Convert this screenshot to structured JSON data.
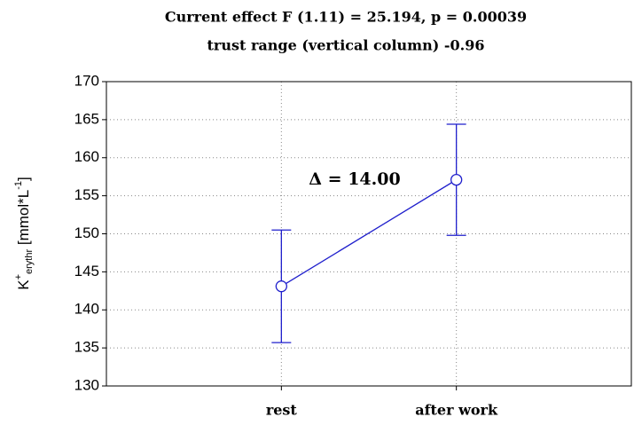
{
  "chart_data": {
    "type": "line",
    "title": "Current effect F (1.11) = 25.194, p = 0.00039",
    "subtitle": "trust range (vertical column) -0.96",
    "y_label": [
      "K",
      "+",
      "erythr",
      " [mmol*L",
      "-1",
      "]"
    ],
    "annotation": "Δ = 14.00",
    "categories": [
      "rest",
      "after work"
    ],
    "series": [
      {
        "color": "#1f1fcc",
        "values": [
          143.1,
          157.1
        ],
        "errors": [
          7.4,
          7.3
        ]
      }
    ],
    "ylim": [
      130,
      170
    ],
    "yticks": [
      130,
      135,
      140,
      145,
      150,
      155,
      160,
      165,
      170
    ],
    "grid": true
  }
}
